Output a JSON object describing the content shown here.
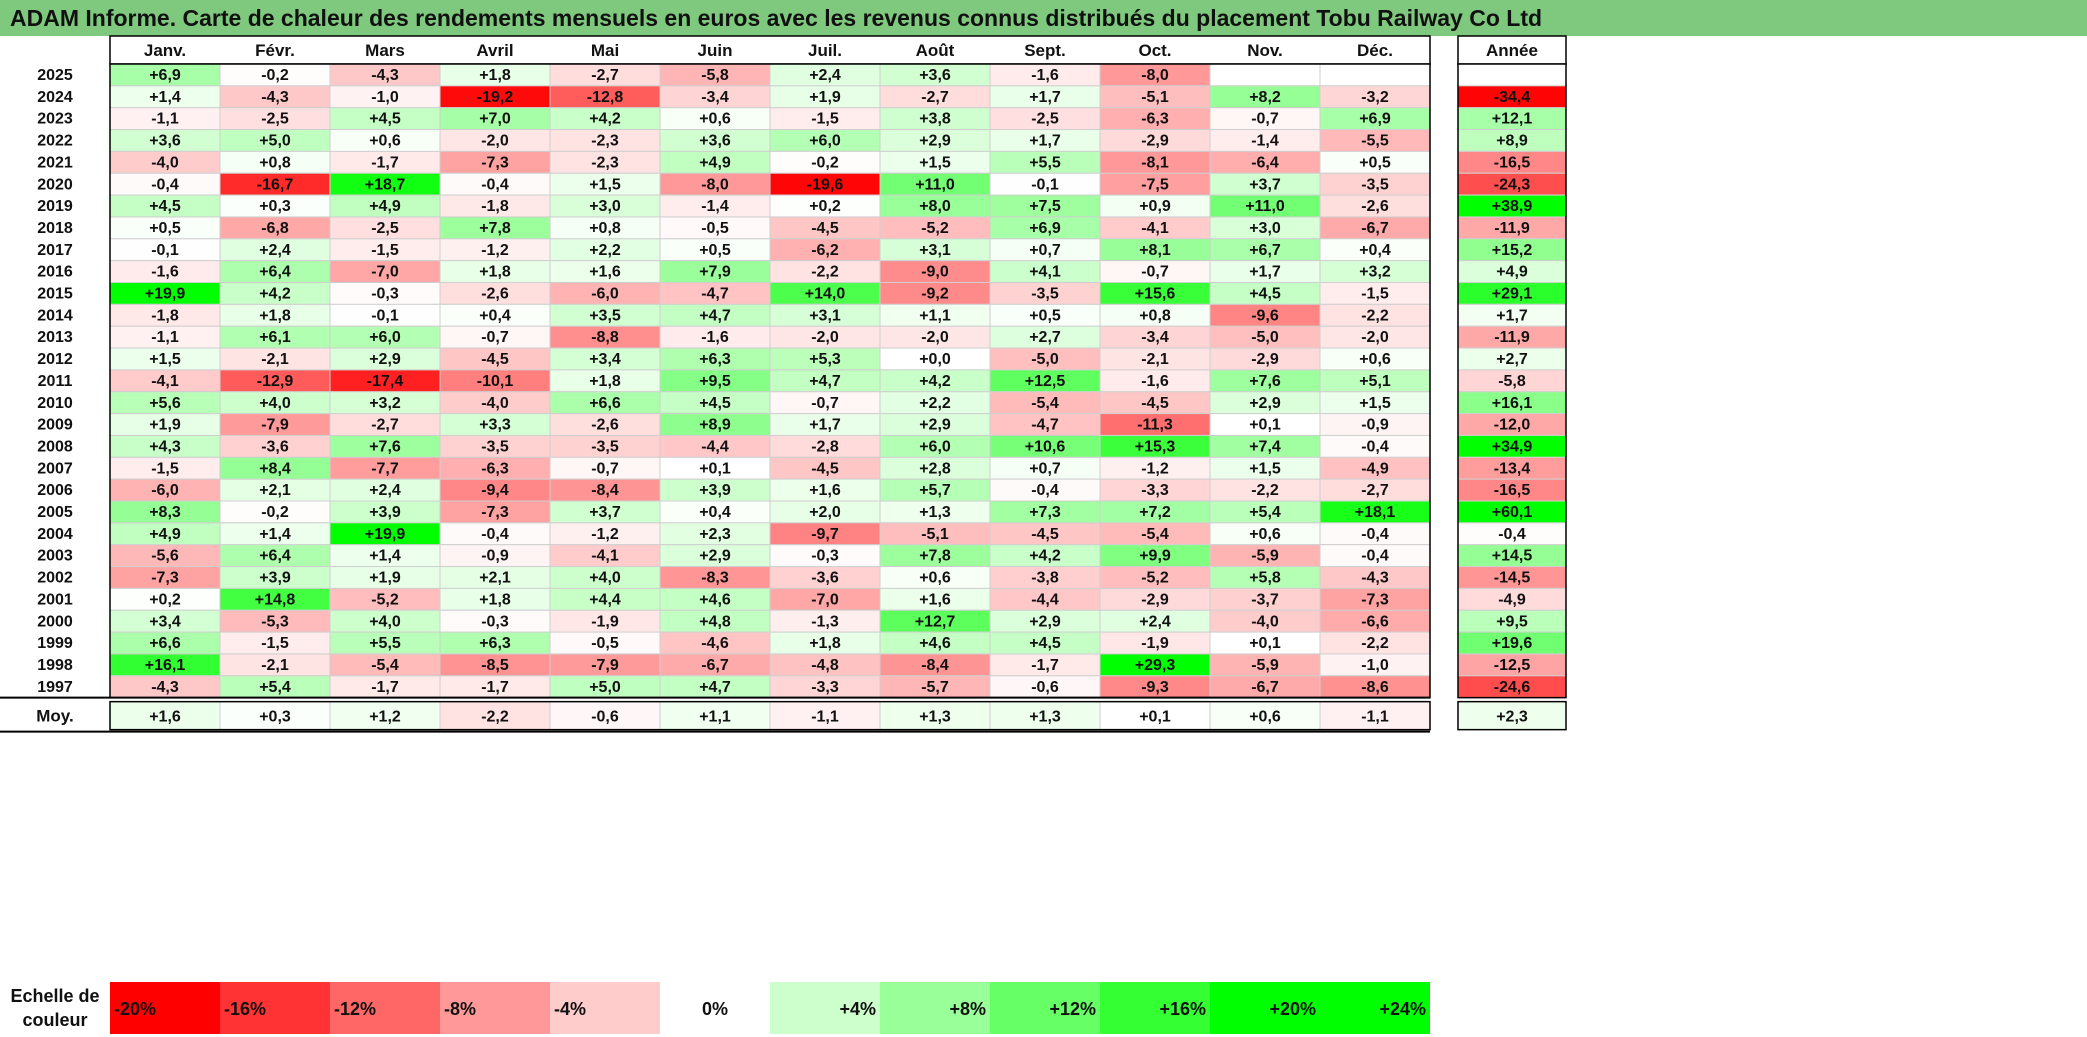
{
  "title": "ADAM Informe. Carte de chaleur des rendements mensuels en euros avec les revenus connus distribués du placement Tobu Railway Co Ltd",
  "chart_data": {
    "type": "heatmap",
    "title": "ADAM Informe. Carte de chaleur des rendements mensuels en euros avec les revenus connus distribués du placement Tobu Railway Co Ltd",
    "months": [
      "Janv.",
      "Févr.",
      "Mars",
      "Avril",
      "Mai",
      "Juin",
      "Juil.",
      "Août",
      "Sept.",
      "Oct.",
      "Nov.",
      "Déc."
    ],
    "annual_header": "Année",
    "rows": [
      {
        "year": "2025",
        "values": [
          "+6,9",
          "-0,2",
          "-4,3",
          "+1,8",
          "-2,7",
          "-5,8",
          "+2,4",
          "+3,6",
          "-1,6",
          "-8,0",
          "",
          ""
        ],
        "annual": ""
      },
      {
        "year": "2024",
        "values": [
          "+1,4",
          "-4,3",
          "-1,0",
          "-19,2",
          "-12,8",
          "-3,4",
          "+1,9",
          "-2,7",
          "+1,7",
          "-5,1",
          "+8,2",
          "-3,2"
        ],
        "annual": "-34,4"
      },
      {
        "year": "2023",
        "values": [
          "-1,1",
          "-2,5",
          "+4,5",
          "+7,0",
          "+4,2",
          "+0,6",
          "-1,5",
          "+3,8",
          "-2,5",
          "-6,3",
          "-0,7",
          "+6,9"
        ],
        "annual": "+12,1"
      },
      {
        "year": "2022",
        "values": [
          "+3,6",
          "+5,0",
          "+0,6",
          "-2,0",
          "-2,3",
          "+3,6",
          "+6,0",
          "+2,9",
          "+1,7",
          "-2,9",
          "-1,4",
          "-5,5"
        ],
        "annual": "+8,9"
      },
      {
        "year": "2021",
        "values": [
          "-4,0",
          "+0,8",
          "-1,7",
          "-7,3",
          "-2,3",
          "+4,9",
          "-0,2",
          "+1,5",
          "+5,5",
          "-8,1",
          "-6,4",
          "+0,5"
        ],
        "annual": "-16,5"
      },
      {
        "year": "2020",
        "values": [
          "-0,4",
          "-16,7",
          "+18,7",
          "-0,4",
          "+1,5",
          "-8,0",
          "-19,6",
          "+11,0",
          "-0,1",
          "-7,5",
          "+3,7",
          "-3,5"
        ],
        "annual": "-24,3"
      },
      {
        "year": "2019",
        "values": [
          "+4,5",
          "+0,3",
          "+4,9",
          "-1,8",
          "+3,0",
          "-1,4",
          "+0,2",
          "+8,0",
          "+7,5",
          "+0,9",
          "+11,0",
          "-2,6"
        ],
        "annual": "+38,9"
      },
      {
        "year": "2018",
        "values": [
          "+0,5",
          "-6,8",
          "-2,5",
          "+7,8",
          "+0,8",
          "-0,5",
          "-4,5",
          "-5,2",
          "+6,9",
          "-4,1",
          "+3,0",
          "-6,7"
        ],
        "annual": "-11,9"
      },
      {
        "year": "2017",
        "values": [
          "-0,1",
          "+2,4",
          "-1,5",
          "-1,2",
          "+2,2",
          "+0,5",
          "-6,2",
          "+3,1",
          "+0,7",
          "+8,1",
          "+6,7",
          "+0,4"
        ],
        "annual": "+15,2"
      },
      {
        "year": "2016",
        "values": [
          "-1,6",
          "+6,4",
          "-7,0",
          "+1,8",
          "+1,6",
          "+7,9",
          "-2,2",
          "-9,0",
          "+4,1",
          "-0,7",
          "+1,7",
          "+3,2"
        ],
        "annual": "+4,9"
      },
      {
        "year": "2015",
        "values": [
          "+19,9",
          "+4,2",
          "-0,3",
          "-2,6",
          "-6,0",
          "-4,7",
          "+14,0",
          "-9,2",
          "-3,5",
          "+15,6",
          "+4,5",
          "-1,5"
        ],
        "annual": "+29,1"
      },
      {
        "year": "2014",
        "values": [
          "-1,8",
          "+1,8",
          "-0,1",
          "+0,4",
          "+3,5",
          "+4,7",
          "+3,1",
          "+1,1",
          "+0,5",
          "+0,8",
          "-9,6",
          "-2,2"
        ],
        "annual": "+1,7"
      },
      {
        "year": "2013",
        "values": [
          "-1,1",
          "+6,1",
          "+6,0",
          "-0,7",
          "-8,8",
          "-1,6",
          "-2,0",
          "-2,0",
          "+2,7",
          "-3,4",
          "-5,0",
          "-2,0"
        ],
        "annual": "-11,9"
      },
      {
        "year": "2012",
        "values": [
          "+1,5",
          "-2,1",
          "+2,9",
          "-4,5",
          "+3,4",
          "+6,3",
          "+5,3",
          "+0,0",
          "-5,0",
          "-2,1",
          "-2,9",
          "+0,6"
        ],
        "annual": "+2,7"
      },
      {
        "year": "2011",
        "values": [
          "-4,1",
          "-12,9",
          "-17,4",
          "-10,1",
          "+1,8",
          "+9,5",
          "+4,7",
          "+4,2",
          "+12,5",
          "-1,6",
          "+7,6",
          "+5,1"
        ],
        "annual": "-5,8"
      },
      {
        "year": "2010",
        "values": [
          "+5,6",
          "+4,0",
          "+3,2",
          "-4,0",
          "+6,6",
          "+4,5",
          "-0,7",
          "+2,2",
          "-5,4",
          "-4,5",
          "+2,9",
          "+1,5"
        ],
        "annual": "+16,1"
      },
      {
        "year": "2009",
        "values": [
          "+1,9",
          "-7,9",
          "-2,7",
          "+3,3",
          "-2,6",
          "+8,9",
          "+1,7",
          "+2,9",
          "-4,7",
          "-11,3",
          "+0,1",
          "-0,9"
        ],
        "annual": "-12,0"
      },
      {
        "year": "2008",
        "values": [
          "+4,3",
          "-3,6",
          "+7,6",
          "-3,5",
          "-3,5",
          "-4,4",
          "-2,8",
          "+6,0",
          "+10,6",
          "+15,3",
          "+7,4",
          "-0,4"
        ],
        "annual": "+34,9"
      },
      {
        "year": "2007",
        "values": [
          "-1,5",
          "+8,4",
          "-7,7",
          "-6,3",
          "-0,7",
          "+0,1",
          "-4,5",
          "+2,8",
          "+0,7",
          "-1,2",
          "+1,5",
          "-4,9"
        ],
        "annual": "-13,4"
      },
      {
        "year": "2006",
        "values": [
          "-6,0",
          "+2,1",
          "+2,4",
          "-9,4",
          "-8,4",
          "+3,9",
          "+1,6",
          "+5,7",
          "-0,4",
          "-3,3",
          "-2,2",
          "-2,7"
        ],
        "annual": "-16,5"
      },
      {
        "year": "2005",
        "values": [
          "+8,3",
          "-0,2",
          "+3,9",
          "-7,3",
          "+3,7",
          "+0,4",
          "+2,0",
          "+1,3",
          "+7,3",
          "+7,2",
          "+5,4",
          "+18,1"
        ],
        "annual": "+60,1"
      },
      {
        "year": "2004",
        "values": [
          "+4,9",
          "+1,4",
          "+19,9",
          "-0,4",
          "-1,2",
          "+2,3",
          "-9,7",
          "-5,1",
          "-4,5",
          "-5,4",
          "+0,6",
          "-0,4"
        ],
        "annual": "-0,4"
      },
      {
        "year": "2003",
        "values": [
          "-5,6",
          "+6,4",
          "+1,4",
          "-0,9",
          "-4,1",
          "+2,9",
          "-0,3",
          "+7,8",
          "+4,2",
          "+9,9",
          "-5,9",
          "-0,4"
        ],
        "annual": "+14,5"
      },
      {
        "year": "2002",
        "values": [
          "-7,3",
          "+3,9",
          "+1,9",
          "+2,1",
          "+4,0",
          "-8,3",
          "-3,6",
          "+0,6",
          "-3,8",
          "-5,2",
          "+5,8",
          "-4,3"
        ],
        "annual": "-14,5"
      },
      {
        "year": "2001",
        "values": [
          "+0,2",
          "+14,8",
          "-5,2",
          "+1,8",
          "+4,4",
          "+4,6",
          "-7,0",
          "+1,6",
          "-4,4",
          "-2,9",
          "-3,7",
          "-7,3"
        ],
        "annual": "-4,9"
      },
      {
        "year": "2000",
        "values": [
          "+3,4",
          "-5,3",
          "+4,0",
          "-0,3",
          "-1,9",
          "+4,8",
          "-1,3",
          "+12,7",
          "+2,9",
          "+2,4",
          "-4,0",
          "-6,6"
        ],
        "annual": "+9,5"
      },
      {
        "year": "1999",
        "values": [
          "+6,6",
          "-1,5",
          "+5,5",
          "+6,3",
          "-0,5",
          "-4,6",
          "+1,8",
          "+4,6",
          "+4,5",
          "-1,9",
          "+0,1",
          "-2,2"
        ],
        "annual": "+19,6"
      },
      {
        "year": "1998",
        "values": [
          "+16,1",
          "-2,1",
          "-5,4",
          "-8,5",
          "-7,9",
          "-6,7",
          "-4,8",
          "-8,4",
          "-1,7",
          "+29,3",
          "-5,9",
          "-1,0"
        ],
        "annual": "-12,5"
      },
      {
        "year": "1997",
        "values": [
          "-4,3",
          "+5,4",
          "-1,7",
          "-1,7",
          "+5,0",
          "+4,7",
          "-3,3",
          "-5,7",
          "-0,6",
          "-9,3",
          "-6,7",
          "-8,6"
        ],
        "annual": "-24,6"
      }
    ],
    "average_row": {
      "label": "Moy.",
      "values": [
        "+1,6",
        "+0,3",
        "+1,2",
        "-2,2",
        "-0,6",
        "+1,1",
        "-1,1",
        "+1,3",
        "+1,3",
        "+0,1",
        "+0,6",
        "-1,1"
      ],
      "annual": "+2,3"
    },
    "color_scale": {
      "label_line1": "Echelle de",
      "label_line2": "couleur",
      "stops": [
        "-20%",
        "-16%",
        "-12%",
        "-8%",
        "-4%",
        "0%",
        "+4%",
        "+8%",
        "+12%",
        "+16%",
        "+20%",
        "+24%"
      ],
      "negative_color": "#ff0000",
      "positive_color": "#00ff00",
      "neutral_color": "#ffffff"
    },
    "colors": {
      "title_bar": "#7fc97f"
    }
  }
}
